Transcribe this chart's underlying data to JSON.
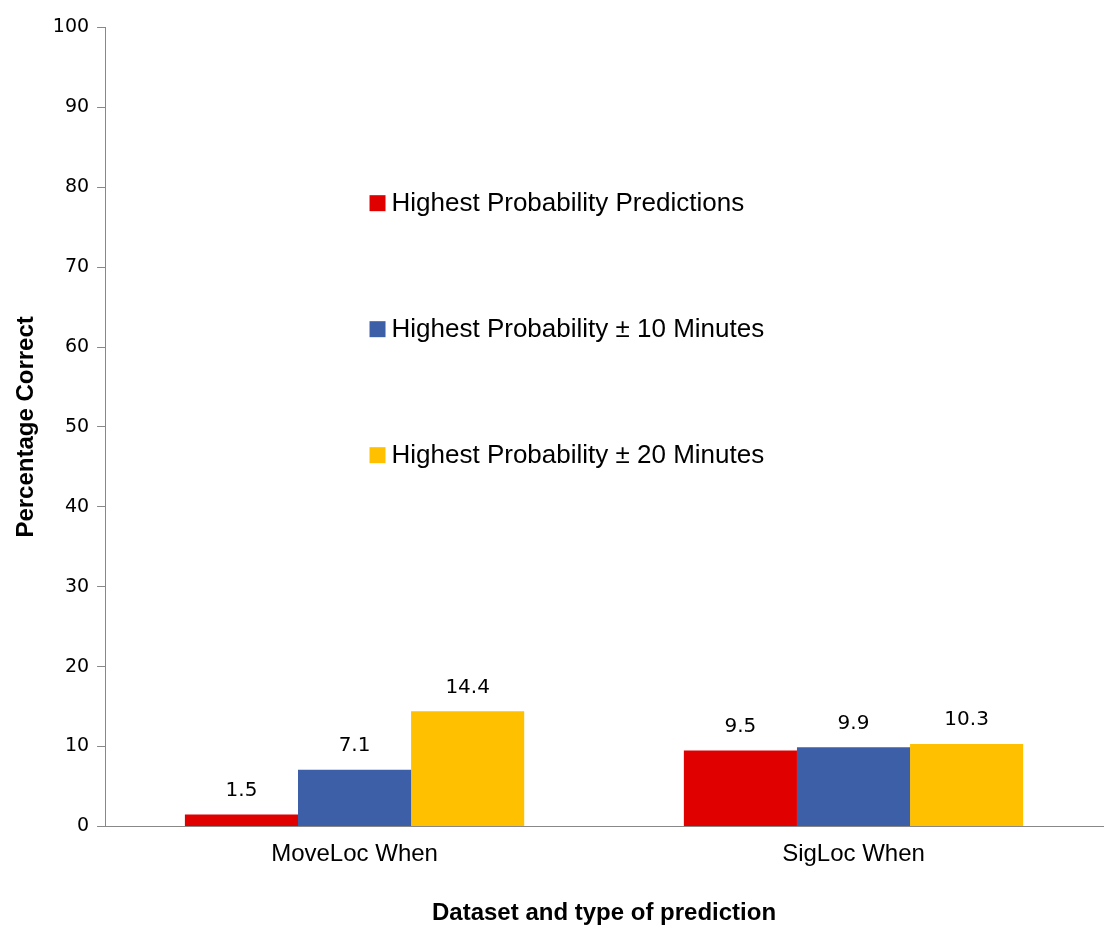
{
  "chart_data": {
    "type": "bar",
    "xlabel": "Dataset and type of prediction",
    "ylabel": "Percentage Correct",
    "categories": [
      "MoveLoc When",
      "SigLoc When"
    ],
    "series": [
      {
        "name": "Highest Probability Predictions",
        "color": "#e00000",
        "values": [
          1.5,
          9.5
        ]
      },
      {
        "name": "Highest Probability ± 10 Minutes",
        "color": "#3d5fa8",
        "values": [
          7.1,
          9.9
        ]
      },
      {
        "name": "Highest Probability ± 20 Minutes",
        "color": "#ffc000",
        "values": [
          14.4,
          10.3
        ]
      }
    ],
    "ylim": [
      0,
      100
    ],
    "yticks": [
      0,
      10,
      20,
      30,
      40,
      50,
      60,
      70,
      80,
      90,
      100
    ],
    "grid": false,
    "legend": "top",
    "data_labels": true
  }
}
